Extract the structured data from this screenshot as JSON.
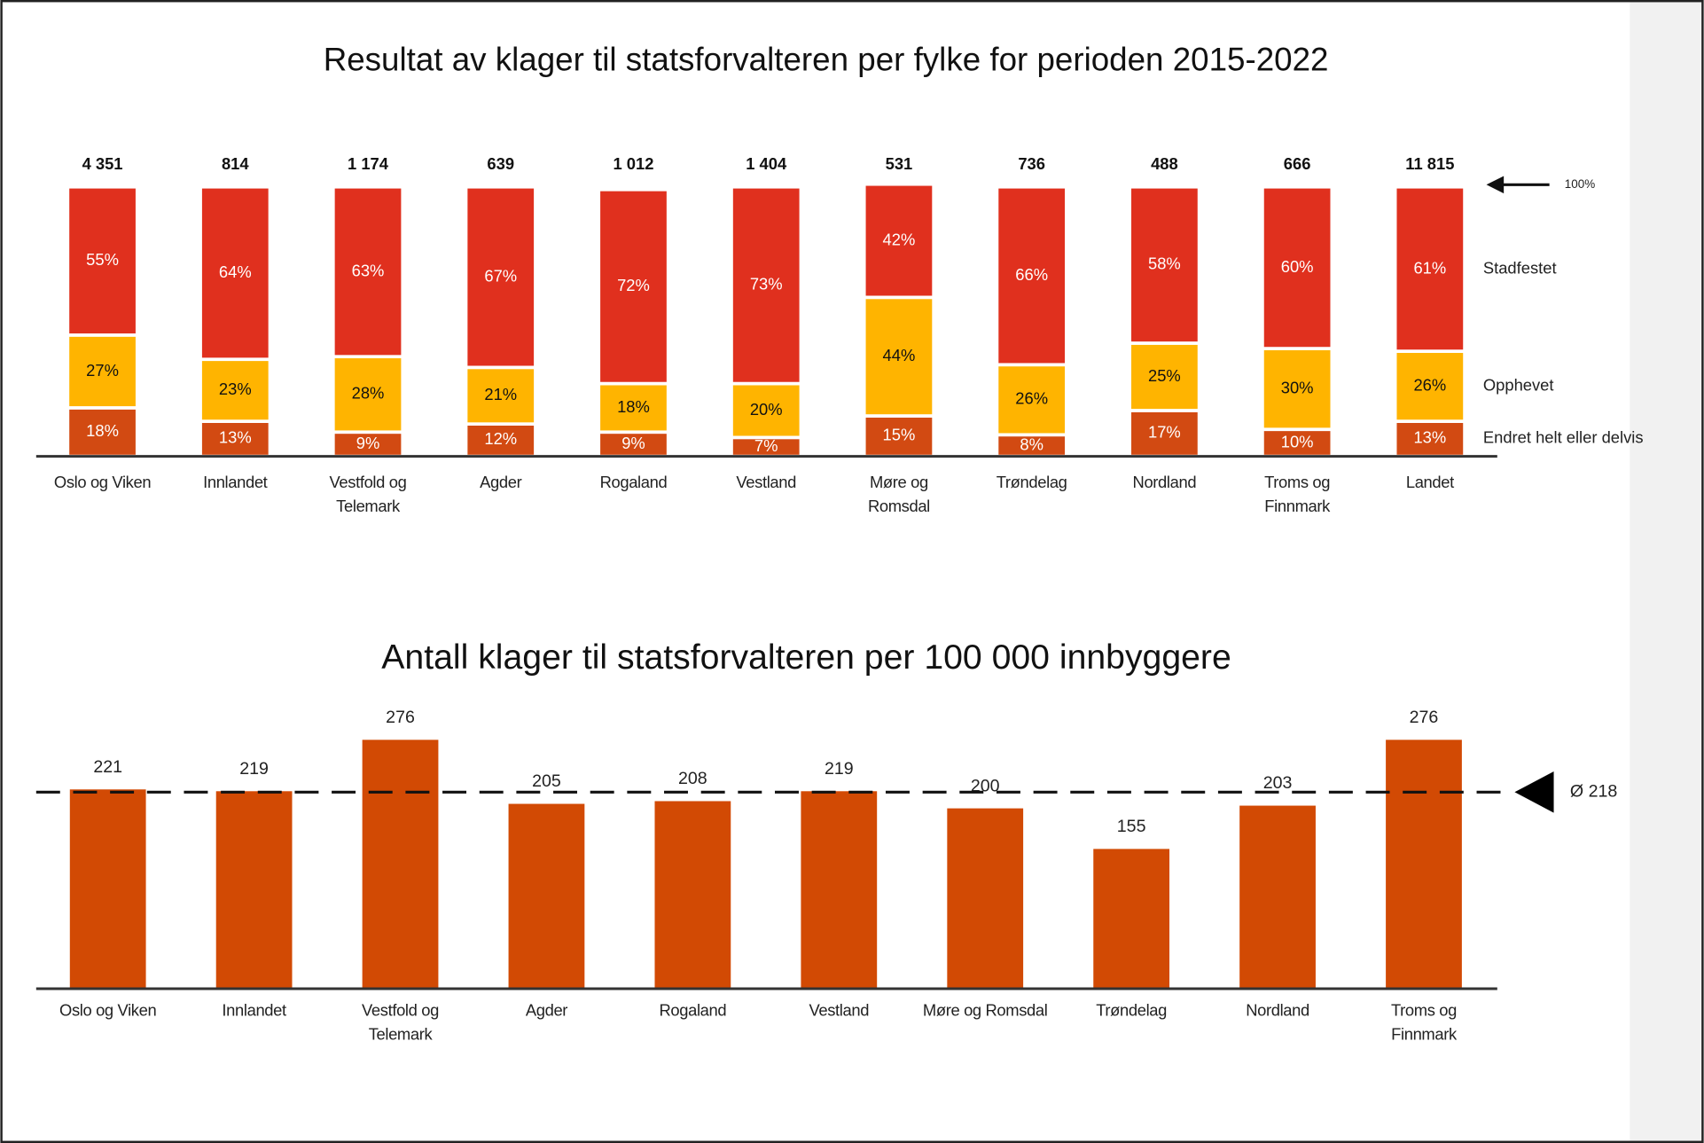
{
  "chart_data": [
    {
      "type": "stacked_bar",
      "title": "Resultat av klager til statsforvalteren per fylke for perioden 2015-2022",
      "categories": [
        "Oslo og Viken",
        "Innlandet",
        "Vestfold og Telemark",
        "Agder",
        "Rogaland",
        "Vestland",
        "Møre og Romsdal",
        "Trøndelag",
        "Nordland",
        "Troms og Finnmark",
        "Landet"
      ],
      "totals": {
        "values": [
          4351,
          814,
          1174,
          639,
          1012,
          1404,
          531,
          736,
          488,
          666,
          11815
        ],
        "value_labels": [
          "4 351",
          "814",
          "1 174",
          "639",
          "1 012",
          "1 404",
          "531",
          "736",
          "488",
          "666",
          "11 815"
        ]
      },
      "ylim": [
        0,
        100
      ],
      "annotation": {
        "value": 100,
        "label": "100%"
      },
      "series": [
        {
          "name": "Endret helt eller delvis",
          "color": "#d24a12",
          "label_color": "#ffffff",
          "values": [
            18,
            13,
            9,
            12,
            9,
            7,
            15,
            8,
            17,
            10,
            13
          ],
          "value_labels": [
            "18%",
            "13%",
            "9%",
            "12%",
            "9%",
            "7%",
            "15%",
            "8%",
            "17%",
            "10%",
            "13%"
          ]
        },
        {
          "name": "Opphevet",
          "color": "#ffb400",
          "label_color": "#111111",
          "values": [
            27,
            23,
            28,
            21,
            18,
            20,
            44,
            26,
            25,
            30,
            26
          ],
          "value_labels": [
            "27%",
            "23%",
            "28%",
            "21%",
            "18%",
            "20%",
            "44%",
            "26%",
            "25%",
            "30%",
            "26%"
          ]
        },
        {
          "name": "Stadfestet",
          "color": "#e0301e",
          "label_color": "#ffffff",
          "values": [
            55,
            64,
            63,
            67,
            72,
            73,
            42,
            66,
            58,
            60,
            61
          ],
          "value_labels": [
            "55%",
            "64%",
            "63%",
            "67%",
            "72%",
            "73%",
            "42%",
            "66%",
            "58%",
            "60%",
            "61%"
          ]
        }
      ]
    },
    {
      "type": "bar",
      "title": "Antall klager til statsforvalteren per 100 000 innbyggere",
      "categories": [
        "Oslo og Viken",
        "Innlandet",
        "Vestfold og Telemark",
        "Agder",
        "Rogaland",
        "Vestland",
        "Møre og Romsdal",
        "Trøndelag",
        "Nordland",
        "Troms og Finnmark"
      ],
      "values": [
        221,
        219,
        276,
        205,
        208,
        219,
        200,
        155,
        203,
        276
      ],
      "color": "#d24a04",
      "ylim": [
        0,
        300
      ],
      "reference": {
        "value": 218,
        "label": "Ø 218"
      }
    }
  ]
}
